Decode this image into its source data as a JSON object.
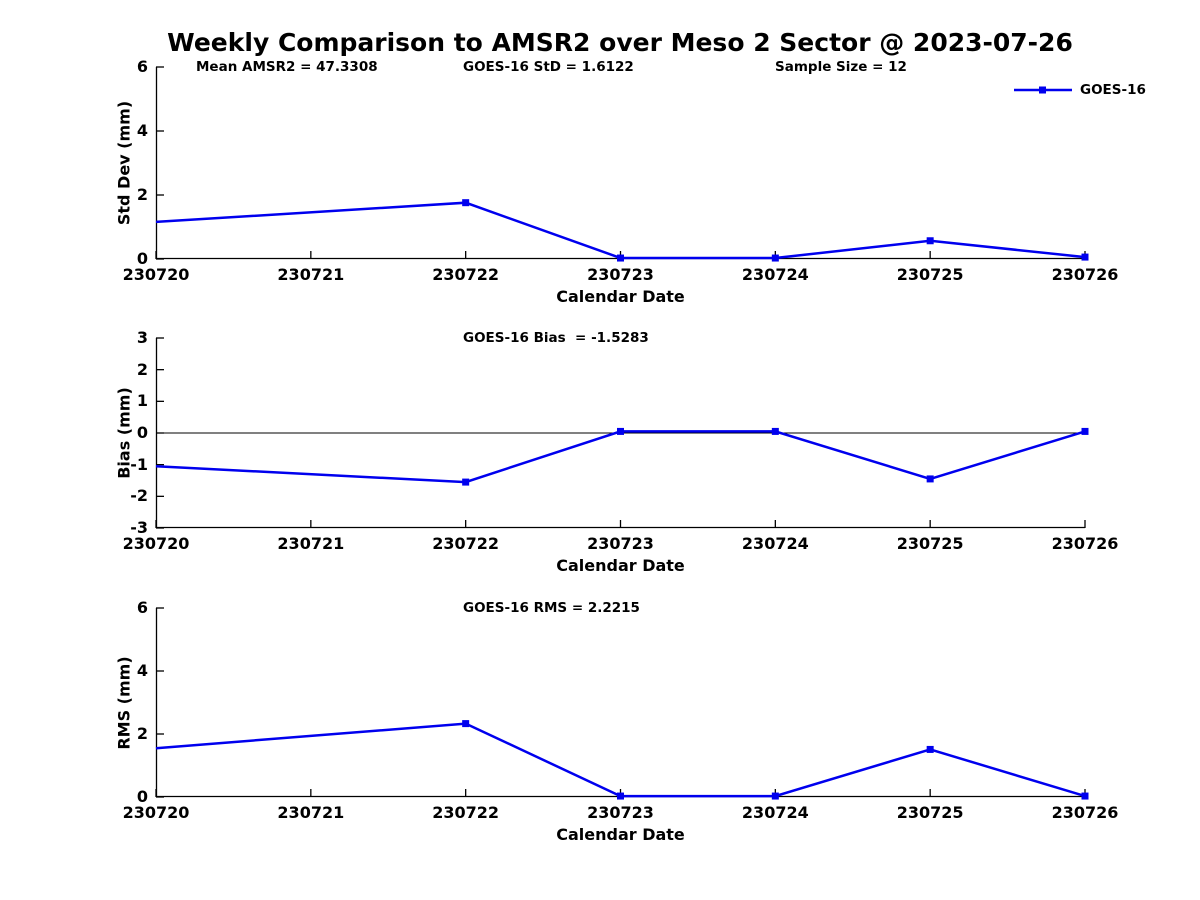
{
  "figure": {
    "title": "Weekly Comparison to AMSR2 over Meso 2 Sector @ 2023-07-26",
    "colors": {
      "line": "#0000EE",
      "axis": "#000000",
      "text": "#000000"
    },
    "legend": {
      "label": "GOES-16"
    }
  },
  "chart_data": [
    {
      "type": "line",
      "name": "std-dev",
      "annotations": [
        {
          "text": "Mean AMSR2 = 47.3308",
          "pos": "left"
        },
        {
          "text": "GOES-16 StD = 1.6122",
          "pos": "center"
        },
        {
          "text": "Sample Size = 12",
          "pos": "right"
        }
      ],
      "xlabel": "Calendar Date",
      "ylabel": "Std Dev (mm)",
      "xlim": [
        230720,
        230726
      ],
      "ylim": [
        0,
        6
      ],
      "yticks": [
        6,
        4,
        2,
        0
      ],
      "xticks": [
        "230720",
        "230721",
        "230722",
        "230723",
        "230724",
        "230725",
        "230726"
      ],
      "zero_line": false,
      "legend_visible": true,
      "series": [
        {
          "name": "GOES-16",
          "x": [
            230720,
            230722,
            230723,
            230724,
            230725,
            230726
          ],
          "y": [
            1.16,
            1.76,
            0.03,
            0.03,
            0.57,
            0.06
          ],
          "markers": [
            false,
            true,
            true,
            true,
            true,
            true
          ]
        }
      ]
    },
    {
      "type": "line",
      "name": "bias",
      "annotations": [
        {
          "text": "GOES-16 Bias  = -1.5283",
          "pos": "center"
        }
      ],
      "xlabel": "Calendar Date",
      "ylabel": "Bias (mm)",
      "xlim": [
        230720,
        230726
      ],
      "ylim": [
        -3,
        3
      ],
      "yticks": [
        3,
        2,
        1,
        0,
        -1,
        -2,
        -3
      ],
      "xticks": [
        "230720",
        "230721",
        "230722",
        "230723",
        "230724",
        "230725",
        "230726"
      ],
      "zero_line": true,
      "legend_visible": false,
      "series": [
        {
          "name": "GOES-16",
          "x": [
            230720,
            230722,
            230723,
            230724,
            230725,
            230726
          ],
          "y": [
            -1.05,
            -1.55,
            0.05,
            0.05,
            -1.45,
            0.05
          ],
          "markers": [
            false,
            true,
            true,
            true,
            true,
            true
          ]
        }
      ]
    },
    {
      "type": "line",
      "name": "rms",
      "annotations": [
        {
          "text": "GOES-16 RMS = 2.2215",
          "pos": "center"
        }
      ],
      "xlabel": "Calendar Date",
      "ylabel": "RMS (mm)",
      "xlim": [
        230720,
        230726
      ],
      "ylim": [
        0,
        6
      ],
      "yticks": [
        6,
        4,
        2,
        0
      ],
      "xticks": [
        "230720",
        "230721",
        "230722",
        "230723",
        "230724",
        "230725",
        "230726"
      ],
      "zero_line": false,
      "legend_visible": false,
      "series": [
        {
          "name": "GOES-16",
          "x": [
            230720,
            230722,
            230723,
            230724,
            230725,
            230726
          ],
          "y": [
            1.55,
            2.33,
            0.03,
            0.03,
            1.51,
            0.03
          ],
          "markers": [
            false,
            true,
            true,
            true,
            true,
            true
          ]
        }
      ]
    }
  ]
}
